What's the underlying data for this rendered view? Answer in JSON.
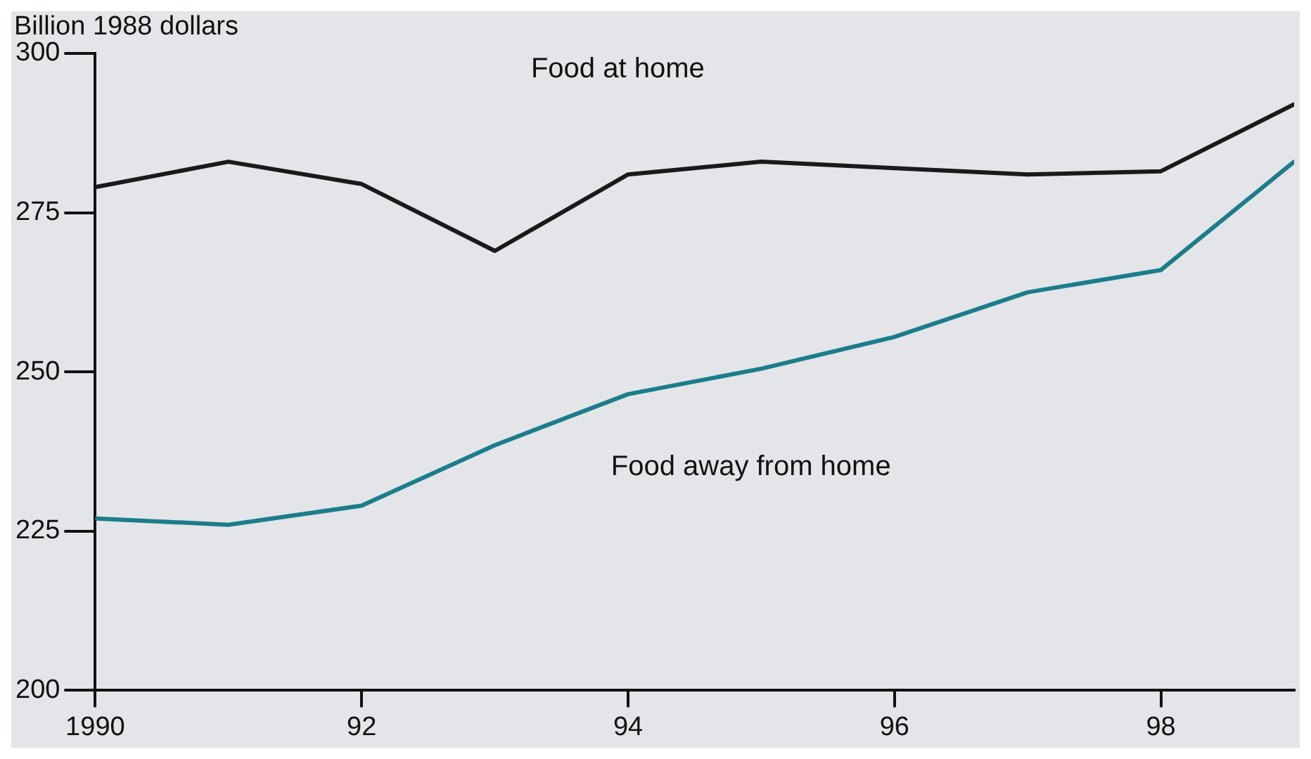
{
  "chart_data": {
    "type": "line",
    "ylabel": "Billion 1988 dollars",
    "x": [
      1990,
      1991,
      1992,
      1993,
      1994,
      1995,
      1996,
      1997,
      1998,
      1999
    ],
    "series": [
      {
        "name": "Food at home",
        "color": "#1a1a1a",
        "values": [
          279,
          283,
          279.5,
          269,
          281,
          283,
          282,
          281,
          281.5,
          292
        ]
      },
      {
        "name": "Food away from home",
        "color": "#1b7d8c",
        "values": [
          227,
          226,
          229,
          238.5,
          246.5,
          250.5,
          255.5,
          262.5,
          266,
          283
        ]
      }
    ],
    "xlim": [
      1990,
      1999
    ],
    "xticks": [
      {
        "value": 1990,
        "label": "1990"
      },
      {
        "value": 1992,
        "label": "92"
      },
      {
        "value": 1994,
        "label": "94"
      },
      {
        "value": 1996,
        "label": "96"
      },
      {
        "value": 1998,
        "label": "98"
      }
    ],
    "ylim": [
      200,
      300
    ],
    "yticks": [
      200,
      225,
      250,
      275,
      300
    ],
    "grid": false,
    "legend": false,
    "marker": "none",
    "line_style": "solid"
  }
}
